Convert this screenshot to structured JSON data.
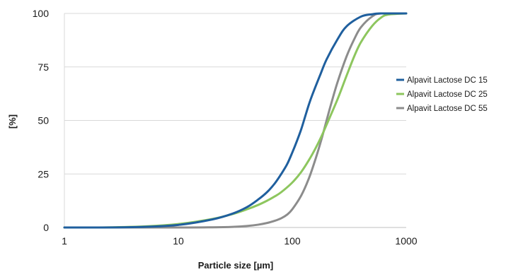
{
  "chart_data": {
    "type": "line",
    "xlabel": "Particle size [µm]",
    "ylabel": "[%]",
    "x_scale": "log",
    "xlim": [
      1,
      1000
    ],
    "ylim": [
      0,
      100
    ],
    "x_ticks": [
      1,
      10,
      100,
      1000
    ],
    "x_tick_labels": [
      "1",
      "10",
      "100",
      "1000"
    ],
    "y_ticks": [
      0,
      25,
      50,
      75,
      100
    ],
    "y_tick_labels": [
      "0",
      "25",
      "50",
      "75",
      "100"
    ],
    "grid": "horizontal",
    "legend_position": "right",
    "series": [
      {
        "name": "Alpavit Lactose DC 15",
        "color": "#1f5f9e",
        "x": [
          1,
          2,
          5,
          10,
          20,
          30,
          40,
          50,
          60,
          70,
          80,
          90,
          100,
          110,
          120,
          130,
          140,
          150,
          175,
          200,
          250,
          300,
          400,
          500,
          600,
          1000
        ],
        "y": [
          0,
          0,
          0.3,
          1.2,
          3.8,
          6.5,
          9.5,
          13,
          16.5,
          20.5,
          25,
          29.5,
          35,
          40.5,
          46,
          52,
          57.5,
          62,
          71,
          78.5,
          88,
          94,
          98.5,
          99.6,
          100,
          100
        ]
      },
      {
        "name": "Alpavit Lactose DC 25",
        "color": "#8dc65e",
        "x": [
          1,
          2,
          5,
          10,
          20,
          30,
          40,
          50,
          60,
          70,
          80,
          100,
          120,
          140,
          160,
          180,
          200,
          250,
          300,
          350,
          400,
          500,
          600,
          700,
          1000
        ],
        "y": [
          0,
          0,
          0.5,
          1.6,
          4,
          6.3,
          8.5,
          10.5,
          12.5,
          14.5,
          16.5,
          21,
          26,
          31.5,
          37,
          42.5,
          48,
          60,
          71,
          80,
          86.5,
          94,
          98,
          99.5,
          100
        ]
      },
      {
        "name": "Alpavit Lactose DC 55",
        "color": "#8c8c8c",
        "x": [
          1,
          10,
          20,
          30,
          40,
          50,
          60,
          70,
          80,
          90,
          100,
          120,
          140,
          160,
          180,
          200,
          220,
          250,
          300,
          350,
          400,
          500,
          600,
          1000
        ],
        "y": [
          0,
          0,
          0.1,
          0.3,
          0.7,
          1.3,
          2.1,
          3.1,
          4.3,
          6,
          8.5,
          15,
          23,
          32,
          41,
          50,
          58,
          68,
          80,
          88,
          93.5,
          98.5,
          100,
          100
        ]
      }
    ]
  }
}
